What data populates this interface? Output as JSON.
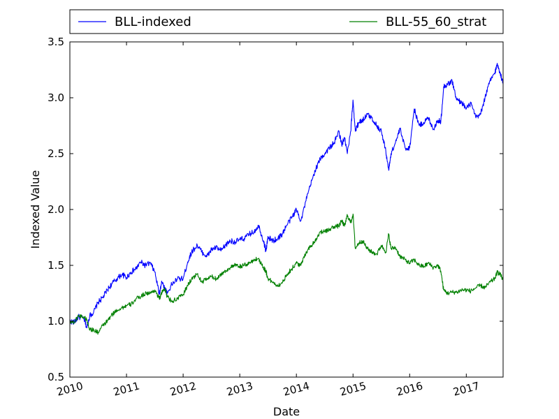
{
  "chart_data": {
    "type": "line",
    "xlabel": "Date",
    "ylabel": "Indexed Value",
    "xlim": [
      2010.0,
      2017.65
    ],
    "ylim": [
      0.5,
      3.5
    ],
    "x_ticks": [
      2010,
      2011,
      2012,
      2013,
      2014,
      2015,
      2016,
      2017
    ],
    "x_tick_labels": [
      "2010",
      "2011",
      "2012",
      "2013",
      "2014",
      "2015",
      "2016",
      "2017"
    ],
    "y_ticks": [
      0.5,
      1.0,
      1.5,
      2.0,
      2.5,
      3.0,
      3.5
    ],
    "y_tick_labels": [
      "0.5",
      "1.0",
      "1.5",
      "2.0",
      "2.5",
      "3.0",
      "3.5"
    ],
    "legend": "top, outside plot area, two columns",
    "grid": false,
    "series": [
      {
        "name": "BLL-indexed",
        "color": "#0000ff",
        "x": [
          2010.0,
          2010.08,
          2010.15,
          2010.25,
          2010.3,
          2010.35,
          2010.42,
          2010.5,
          2010.58,
          2010.66,
          2010.75,
          2010.83,
          2010.92,
          2011.0,
          2011.08,
          2011.17,
          2011.25,
          2011.33,
          2011.42,
          2011.5,
          2011.58,
          2011.62,
          2011.67,
          2011.72,
          2011.8,
          2011.9,
          2012.0,
          2012.08,
          2012.15,
          2012.25,
          2012.33,
          2012.42,
          2012.5,
          2012.58,
          2012.67,
          2012.75,
          2012.83,
          2012.92,
          2013.0,
          2013.08,
          2013.17,
          2013.25,
          2013.33,
          2013.42,
          2013.46,
          2013.5,
          2013.58,
          2013.67,
          2013.75,
          2013.83,
          2013.92,
          2014.0,
          2014.08,
          2014.17,
          2014.25,
          2014.33,
          2014.42,
          2014.5,
          2014.58,
          2014.67,
          2014.75,
          2014.8,
          2014.85,
          2014.9,
          2014.96,
          2015.0,
          2015.04,
          2015.1,
          2015.17,
          2015.25,
          2015.33,
          2015.42,
          2015.5,
          2015.58,
          2015.63,
          2015.67,
          2015.75,
          2015.83,
          2015.92,
          2016.0,
          2016.08,
          2016.17,
          2016.25,
          2016.33,
          2016.42,
          2016.5,
          2016.55,
          2016.6,
          2016.67,
          2016.75,
          2016.83,
          2016.92,
          2017.0,
          2017.08,
          2017.17,
          2017.25,
          2017.33,
          2017.42,
          2017.5,
          2017.55,
          2017.6,
          2017.65
        ],
        "y": [
          1.0,
          0.99,
          1.04,
          1.02,
          0.94,
          1.05,
          1.08,
          1.17,
          1.21,
          1.28,
          1.34,
          1.38,
          1.42,
          1.39,
          1.44,
          1.47,
          1.53,
          1.5,
          1.52,
          1.44,
          1.24,
          1.36,
          1.3,
          1.25,
          1.33,
          1.38,
          1.38,
          1.53,
          1.62,
          1.68,
          1.62,
          1.58,
          1.64,
          1.66,
          1.63,
          1.68,
          1.72,
          1.71,
          1.73,
          1.74,
          1.78,
          1.8,
          1.86,
          1.72,
          1.63,
          1.75,
          1.72,
          1.74,
          1.78,
          1.86,
          1.93,
          2.0,
          1.9,
          2.08,
          2.22,
          2.35,
          2.45,
          2.5,
          2.55,
          2.6,
          2.7,
          2.58,
          2.64,
          2.5,
          2.7,
          2.98,
          2.7,
          2.78,
          2.8,
          2.85,
          2.82,
          2.75,
          2.7,
          2.52,
          2.35,
          2.5,
          2.6,
          2.72,
          2.55,
          2.55,
          2.9,
          2.75,
          2.78,
          2.82,
          2.72,
          2.8,
          2.78,
          3.1,
          3.12,
          3.15,
          2.98,
          2.96,
          2.9,
          2.95,
          2.82,
          2.85,
          3.0,
          3.15,
          3.22,
          3.3,
          3.22,
          3.12
        ]
      },
      {
        "name": "BLL-55_60_strat",
        "color": "#008000",
        "x": [
          2010.0,
          2010.08,
          2010.15,
          2010.25,
          2010.3,
          2010.35,
          2010.42,
          2010.5,
          2010.58,
          2010.66,
          2010.75,
          2010.83,
          2010.92,
          2011.0,
          2011.08,
          2011.17,
          2011.25,
          2011.33,
          2011.42,
          2011.5,
          2011.58,
          2011.62,
          2011.67,
          2011.72,
          2011.8,
          2011.9,
          2012.0,
          2012.08,
          2012.15,
          2012.25,
          2012.33,
          2012.42,
          2012.5,
          2012.58,
          2012.67,
          2012.75,
          2012.83,
          2012.92,
          2013.0,
          2013.08,
          2013.17,
          2013.25,
          2013.33,
          2013.42,
          2013.46,
          2013.5,
          2013.58,
          2013.67,
          2013.75,
          2013.83,
          2013.92,
          2014.0,
          2014.08,
          2014.17,
          2014.25,
          2014.33,
          2014.42,
          2014.5,
          2014.58,
          2014.67,
          2014.75,
          2014.8,
          2014.85,
          2014.9,
          2014.96,
          2015.0,
          2015.04,
          2015.1,
          2015.17,
          2015.25,
          2015.33,
          2015.42,
          2015.5,
          2015.58,
          2015.63,
          2015.67,
          2015.75,
          2015.83,
          2015.92,
          2016.0,
          2016.08,
          2016.17,
          2016.25,
          2016.33,
          2016.42,
          2016.5,
          2016.55,
          2016.6,
          2016.67,
          2016.75,
          2016.83,
          2016.92,
          2017.0,
          2017.08,
          2017.17,
          2017.25,
          2017.33,
          2017.42,
          2017.5,
          2017.55,
          2017.6,
          2017.65
        ],
        "y": [
          1.0,
          0.99,
          1.05,
          1.04,
          1.01,
          0.93,
          0.92,
          0.9,
          0.96,
          1.0,
          1.06,
          1.1,
          1.12,
          1.14,
          1.15,
          1.2,
          1.22,
          1.25,
          1.25,
          1.28,
          1.2,
          1.25,
          1.3,
          1.22,
          1.18,
          1.2,
          1.24,
          1.32,
          1.38,
          1.42,
          1.35,
          1.38,
          1.4,
          1.38,
          1.42,
          1.45,
          1.48,
          1.5,
          1.49,
          1.5,
          1.52,
          1.55,
          1.56,
          1.48,
          1.45,
          1.38,
          1.35,
          1.32,
          1.34,
          1.42,
          1.47,
          1.52,
          1.5,
          1.62,
          1.67,
          1.72,
          1.8,
          1.8,
          1.82,
          1.85,
          1.85,
          1.9,
          1.85,
          1.95,
          1.88,
          1.96,
          1.65,
          1.7,
          1.72,
          1.65,
          1.62,
          1.6,
          1.68,
          1.62,
          1.78,
          1.65,
          1.66,
          1.58,
          1.55,
          1.52,
          1.55,
          1.5,
          1.49,
          1.52,
          1.48,
          1.5,
          1.45,
          1.28,
          1.25,
          1.26,
          1.26,
          1.28,
          1.28,
          1.27,
          1.3,
          1.32,
          1.3,
          1.35,
          1.38,
          1.44,
          1.42,
          1.37
        ]
      }
    ]
  }
}
